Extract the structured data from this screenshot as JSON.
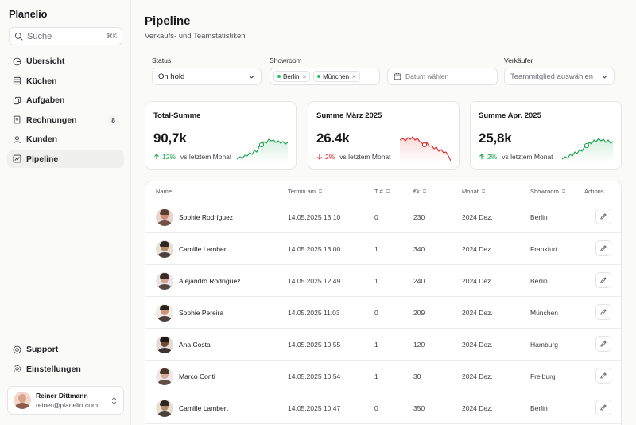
{
  "app": {
    "name": "Planelio"
  },
  "search": {
    "placeholder": "Suche",
    "shortcut": "⌘K"
  },
  "nav": {
    "items": [
      {
        "label": "Übersicht",
        "icon": "chart-pie-icon"
      },
      {
        "label": "Küchen",
        "icon": "database-icon"
      },
      {
        "label": "Aufgaben",
        "icon": "copy-icon"
      },
      {
        "label": "Rechnungen",
        "icon": "document-icon",
        "badge": "8"
      },
      {
        "label": "Kunden",
        "icon": "users-icon"
      },
      {
        "label": "Pipeline",
        "icon": "chart-line-icon",
        "active": true
      }
    ],
    "bottom": [
      {
        "label": "Support",
        "icon": "lifebuoy-icon"
      },
      {
        "label": "Einstellungen",
        "icon": "gear-icon"
      }
    ]
  },
  "user": {
    "name": "Reiner Dittmann",
    "email": "reiner@planelio.com"
  },
  "page": {
    "title": "Pipeline",
    "subtitle": "Verkaufs- und Teamstatistiken"
  },
  "filters": {
    "status": {
      "label": "Status",
      "value": "On hold"
    },
    "showroom": {
      "label": "Showroom",
      "chips": [
        "Berlin",
        "München"
      ]
    },
    "date": {
      "placeholder": "Datum wählen"
    },
    "seller": {
      "label": "Verkäufer",
      "placeholder": "Teammitglied auswählen"
    }
  },
  "kpis": [
    {
      "title": "Total-Summe",
      "value": "90,7k",
      "delta": "12%",
      "trend": "up",
      "note": "vs letztem Monat",
      "color": "#16a34a"
    },
    {
      "title": "Summe März 2025",
      "value": "26.4k",
      "delta": "2%",
      "trend": "down",
      "note": "vs letztem Monat",
      "color": "#dc2626"
    },
    {
      "title": "Summe Apr. 2025",
      "value": "25,8k",
      "delta": "2%",
      "trend": "up",
      "note": "vs letztem Monat",
      "color": "#16a34a"
    }
  ],
  "table": {
    "columns": [
      "Name",
      "Termin am",
      "T #",
      "€k",
      "Monat",
      "Showroom",
      "Actions"
    ],
    "rows": [
      {
        "name": "Sophie Rodríguez",
        "date": "14.05.2025 13:10",
        "t": "0",
        "k": "230",
        "month": "2024 Dez.",
        "showroom": "Berlin"
      },
      {
        "name": "Camille Lambert",
        "date": "14.05.2025 13:00",
        "t": "1",
        "k": "340",
        "month": "2024 Dez.",
        "showroom": "Frankfurt"
      },
      {
        "name": "Alejandro Rodríguez",
        "date": "14.05.2025 12:49",
        "t": "1",
        "k": "240",
        "month": "2024 Dez.",
        "showroom": "Berlin"
      },
      {
        "name": "Sophie Pereira",
        "date": "14.05.2025 11:03",
        "t": "0",
        "k": "209",
        "month": "2024 Dez.",
        "showroom": "München"
      },
      {
        "name": "Ana Costa",
        "date": "14.05.2025 10:55",
        "t": "1",
        "k": "120",
        "month": "2024 Dez.",
        "showroom": "Hamburg"
      },
      {
        "name": "Marco Conti",
        "date": "14.05.2025 10:54",
        "t": "1",
        "k": "30",
        "month": "2024 Dez.",
        "showroom": "Freiburg"
      },
      {
        "name": "Camille Lambert",
        "date": "14.05.2025 10:47",
        "t": "0",
        "k": "350",
        "month": "2024 Dez.",
        "showroom": "Berlin"
      }
    ]
  }
}
